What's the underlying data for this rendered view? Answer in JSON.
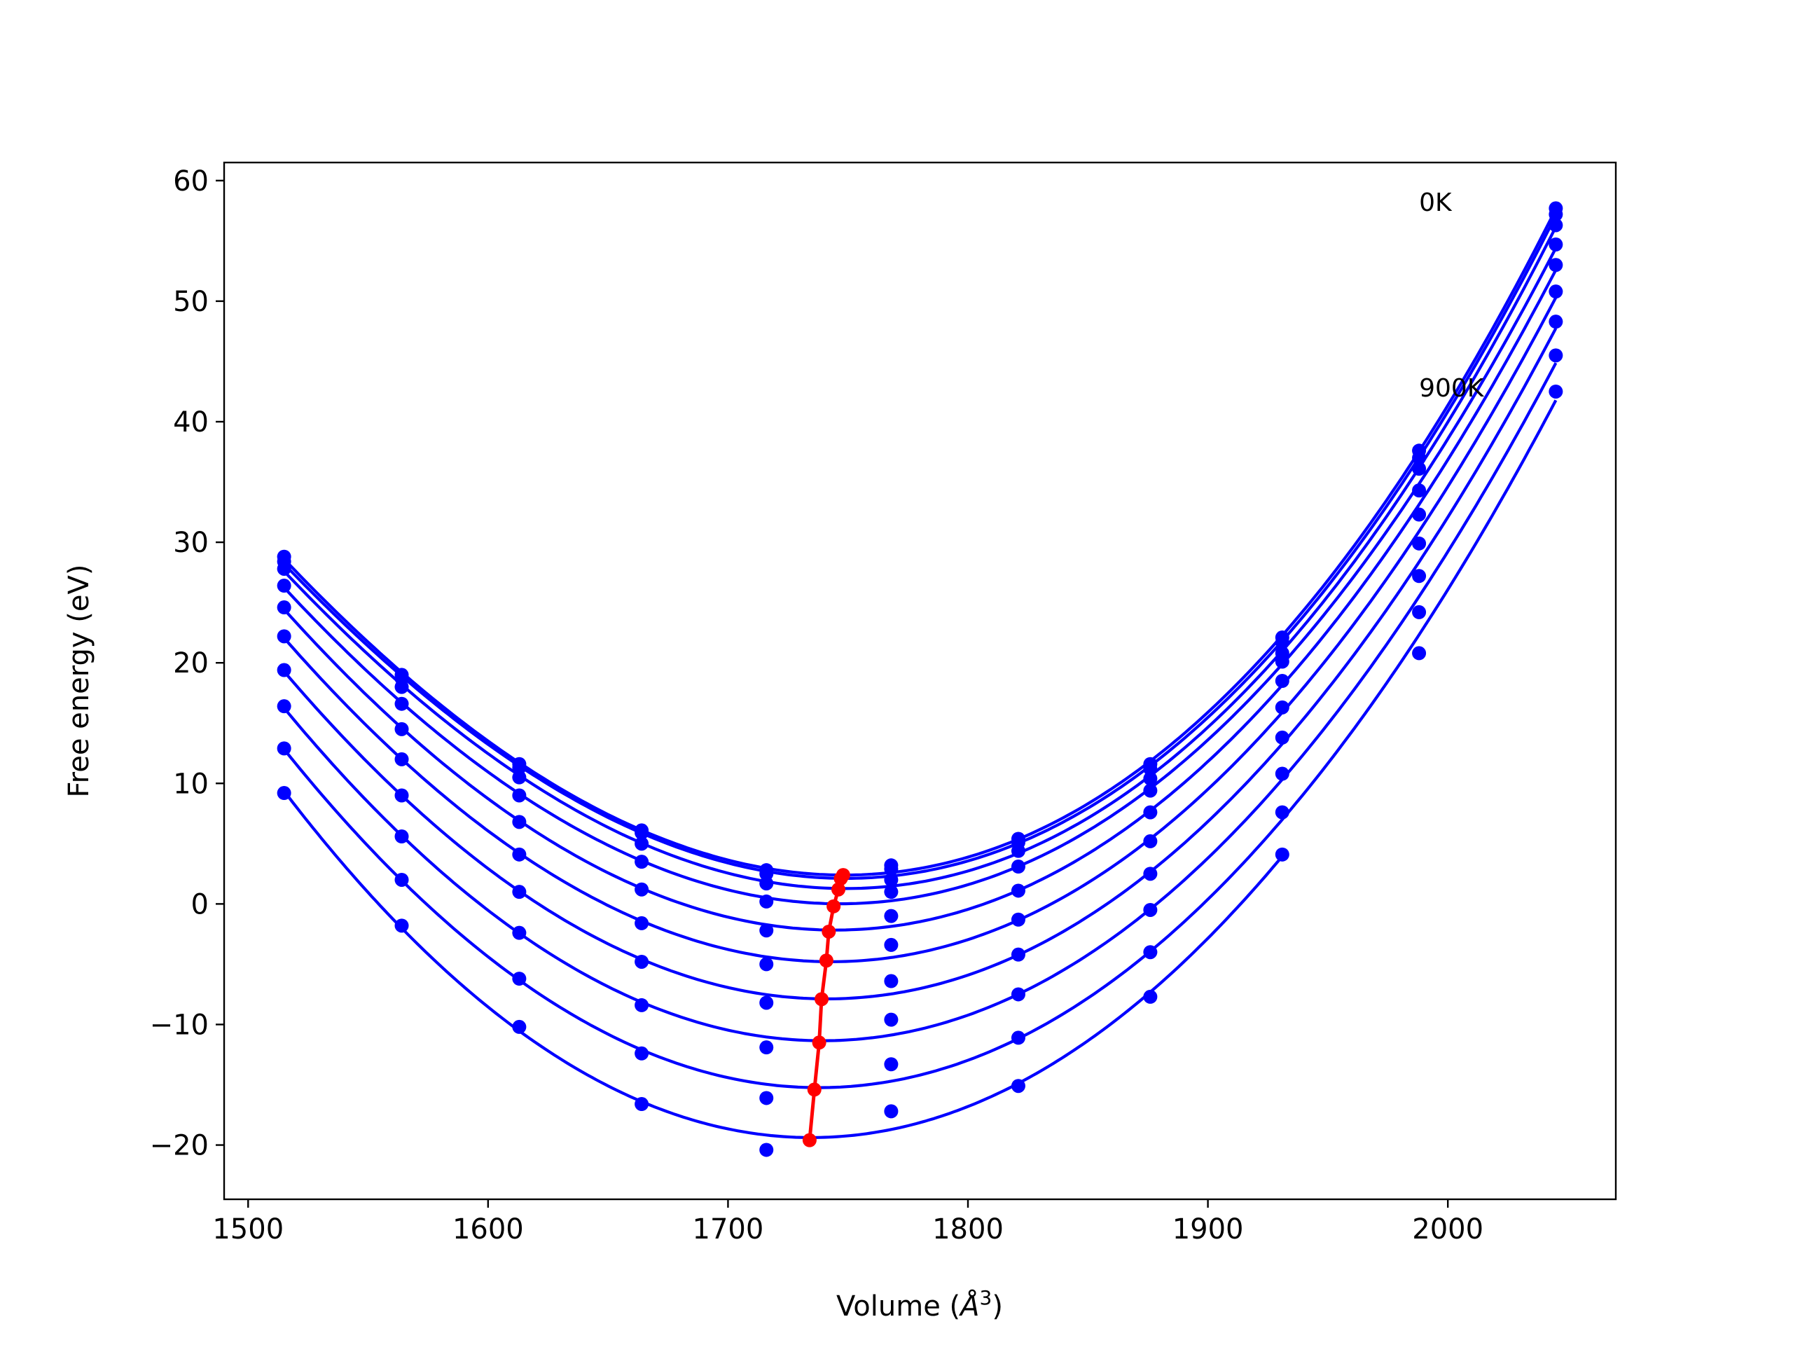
{
  "chart_data": {
    "type": "line",
    "title": "",
    "xlabel": "Volume (",
    "xlabel_symbol": "Å",
    "xlabel_exponent": "3",
    "xlabel_close": ")",
    "ylabel": "Free energy (eV)",
    "xlim": [
      1490,
      2070
    ],
    "ylim": [
      -24.5,
      61.5
    ],
    "xticks": [
      1500,
      1600,
      1700,
      1800,
      1900,
      2000
    ],
    "yticks": [
      60,
      50,
      40,
      30,
      20,
      10,
      0,
      -10,
      -20
    ],
    "xtick_labels": [
      "1500",
      "1600",
      "1700",
      "1800",
      "1900",
      "2000"
    ],
    "ytick_labels": [
      "60",
      "50",
      "40",
      "30",
      "20",
      "10",
      "0",
      "−10",
      "−20"
    ],
    "grid": false,
    "legend": "none",
    "annotations": [
      {
        "text": "0K",
        "x": 1988,
        "y": 58.2
      },
      {
        "text": "900K",
        "x": 1988,
        "y": 42.8
      }
    ],
    "volumes": [
      1515,
      1564,
      1613,
      1664,
      1716,
      1768,
      1821,
      1876,
      1931,
      1988,
      2045
    ],
    "series": [
      {
        "y": [
          28.8,
          19.0,
          11.6,
          6.1,
          2.8,
          3.2,
          5.4,
          11.6,
          22.1,
          37.6,
          57.7
        ]
      },
      {
        "y": [
          28.4,
          18.7,
          11.3,
          5.9,
          2.5,
          2.9,
          5.1,
          11.2,
          21.7,
          37.0,
          57.2
        ]
      },
      {
        "y": [
          27.8,
          18.0,
          10.5,
          5.0,
          1.7,
          2.0,
          4.4,
          10.4,
          20.8,
          36.1,
          56.3
        ]
      },
      {
        "y": [
          26.4,
          16.6,
          9.0,
          3.5,
          0.2,
          1.0,
          3.1,
          9.4,
          20.1,
          34.3,
          54.7
        ]
      },
      {
        "y": [
          24.6,
          14.5,
          6.8,
          1.2,
          -2.2,
          -1.0,
          1.1,
          7.6,
          18.5,
          32.3,
          53.0
        ]
      },
      {
        "y": [
          22.2,
          12.0,
          4.1,
          -1.6,
          -5.0,
          -3.4,
          -1.3,
          5.2,
          16.3,
          29.9,
          50.8
        ]
      },
      {
        "y": [
          19.4,
          9.0,
          1.0,
          -4.8,
          -8.2,
          -6.4,
          -4.2,
          2.5,
          13.8,
          27.2,
          48.3
        ]
      },
      {
        "y": [
          16.4,
          5.6,
          -2.4,
          -8.4,
          -11.9,
          -9.6,
          -7.5,
          -0.5,
          10.8,
          24.2,
          45.5
        ]
      },
      {
        "y": [
          12.9,
          2.0,
          -6.2,
          -12.4,
          -16.1,
          -13.3,
          -11.1,
          -4.0,
          7.6,
          20.8,
          42.5
        ]
      },
      {
        "y": [
          9.2,
          -1.8,
          -10.2,
          -16.6,
          -20.4,
          -17.2,
          -15.1,
          -7.7,
          4.1,
          null,
          null
        ]
      }
    ],
    "minima": {
      "x": [
        1748,
        1747,
        1746,
        1744,
        1742,
        1741,
        1739,
        1738,
        1736,
        1734
      ],
      "y": [
        2.4,
        2.1,
        1.2,
        -0.2,
        -2.3,
        -4.7,
        -7.9,
        -11.5,
        -15.4,
        -19.6
      ]
    },
    "colors": {
      "curve": "#0000ff",
      "points": "#0000ff",
      "minima": "#ff0000",
      "axes": "#000000"
    }
  }
}
